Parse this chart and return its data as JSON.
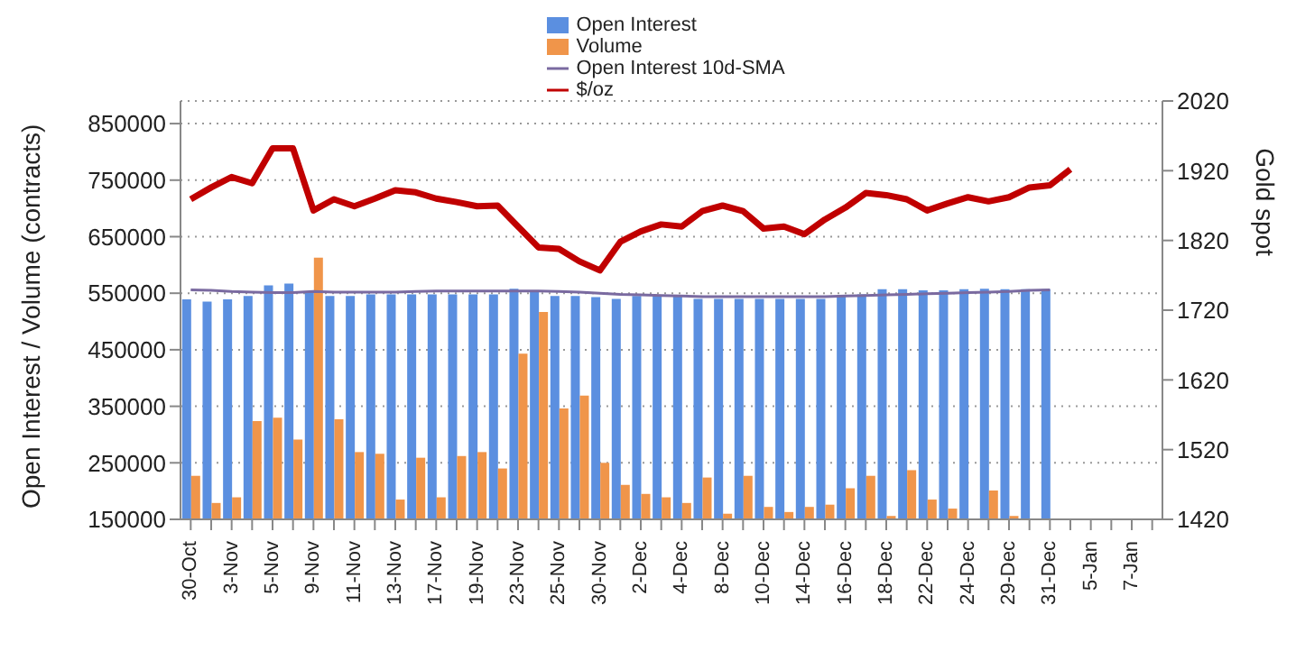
{
  "chart_data": {
    "type": "bar",
    "ylabel": "Open Interest / Volume (contracts)",
    "y2label": "Gold spot",
    "categories": [
      "30-Oct",
      null,
      "3-Nov",
      null,
      "5-Nov",
      null,
      "9-Nov",
      null,
      "11-Nov",
      null,
      "13-Nov",
      null,
      "17-Nov",
      null,
      "19-Nov",
      null,
      "23-Nov",
      null,
      "25-Nov",
      null,
      "30-Nov",
      null,
      "2-Dec",
      null,
      "4-Dec",
      null,
      "8-Dec",
      null,
      "10-Dec",
      null,
      "14-Dec",
      null,
      "16-Dec",
      null,
      "18-Dec",
      null,
      "22-Dec",
      null,
      "24-Dec",
      null,
      "29-Dec",
      null,
      "31-Dec",
      null,
      "5-Jan",
      null,
      "7-Jan",
      null
    ],
    "series": [
      {
        "name": "Open Interest",
        "color": "#5b8fe0",
        "values": [
          539000,
          535000,
          539000,
          545000,
          564000,
          567000,
          551000,
          545000,
          545000,
          548000,
          548000,
          548000,
          548000,
          548000,
          548000,
          548000,
          558000,
          555000,
          545000,
          545000,
          543000,
          540000,
          545000,
          545000,
          545000,
          540000,
          540000,
          540000,
          540000,
          540000,
          540000,
          540000,
          545000,
          548000,
          557000,
          557000,
          555000,
          555000,
          557000,
          558000,
          557000,
          557000,
          557000,
          null,
          null,
          null,
          null,
          null
        ]
      },
      {
        "name": "Volume",
        "color": "#f0954a",
        "values": [
          227000,
          179000,
          189000,
          324000,
          330000,
          291000,
          613000,
          327000,
          269000,
          266000,
          185000,
          259000,
          189000,
          262000,
          269000,
          240000,
          443000,
          517000,
          346000,
          369000,
          250000,
          211000,
          195000,
          189000,
          179000,
          224000,
          160000,
          227000,
          172000,
          163000,
          172000,
          176000,
          205000,
          227000,
          156000,
          237000,
          185000,
          169000,
          null,
          201000,
          156000,
          null,
          null,
          null,
          null,
          null,
          null,
          null
        ]
      },
      {
        "name": "Open Interest 10d-SMA",
        "type": "line",
        "color": "#7a6aa0",
        "values": [
          556000,
          555000,
          553000,
          552000,
          551000,
          551000,
          553000,
          552000,
          552000,
          552000,
          552000,
          553000,
          554000,
          554000,
          554000,
          554000,
          554000,
          554000,
          553000,
          552000,
          550000,
          548000,
          547000,
          546000,
          545000,
          544000,
          544000,
          544000,
          544000,
          544000,
          544000,
          544000,
          545000,
          546000,
          547000,
          548000,
          549000,
          550000,
          551000,
          552000,
          553000,
          555000,
          556000,
          null,
          null,
          null,
          null,
          null
        ]
      },
      {
        "name": "$/oz",
        "type": "line",
        "axis": "y2",
        "color": "#c00000",
        "values": [
          1879,
          1896,
          1911,
          1902,
          1952,
          1952,
          1863,
          1879,
          1869,
          1880,
          1892,
          1889,
          1880,
          1875,
          1869,
          1870,
          1840,
          1810,
          1808,
          1790,
          1777,
          1818,
          1833,
          1843,
          1840,
          1862,
          1870,
          1862,
          1837,
          1840,
          1829,
          1850,
          1867,
          1888,
          1885,
          1879,
          1863,
          1873,
          1882,
          1876,
          1882,
          1896,
          1899,
          1922,
          null,
          null,
          null,
          null
        ]
      }
    ],
    "ylim": [
      150000,
      890000
    ],
    "yticks": [
      150000,
      250000,
      350000,
      450000,
      550000,
      650000,
      750000,
      850000
    ],
    "y2lim": [
      1420,
      2020
    ],
    "y2ticks": [
      1420,
      1520,
      1620,
      1720,
      1820,
      1920,
      2020
    ],
    "grid": "y",
    "legend": "top",
    "marker": "none",
    "line_style": "solid"
  }
}
